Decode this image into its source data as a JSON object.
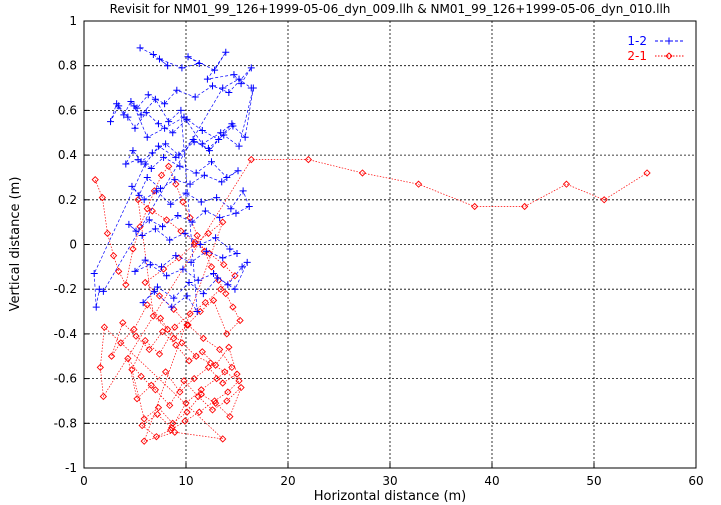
{
  "chart_data": {
    "type": "scatter",
    "title": "Revisit for NM01_99_126+1999-05-06_dyn_009.llh & NM01_99_126+1999-05-06_dyn_010.llh",
    "xlabel": "Horizontal distance (m)",
    "ylabel": "Vertical distance (m)",
    "xlim": [
      0,
      60
    ],
    "ylim": [
      -1,
      1
    ],
    "xticks": [
      0,
      10,
      20,
      30,
      40,
      50,
      60
    ],
    "yticks": [
      -1,
      -0.8,
      -0.6,
      -0.4,
      -0.2,
      0,
      0.2,
      0.4,
      0.6,
      0.8,
      1
    ],
    "grid": true,
    "legend_position": "top-right",
    "series": [
      {
        "name": "1-2",
        "color": "#0000ff",
        "marker": "plus",
        "line": "dashed",
        "summary": "dense cluster of points, horizontal distance about 1 to 17 m, vertical distance about -0.3 to 0.9 m",
        "x": [
          5.5,
          6.8,
          8.2,
          7.4,
          9.6,
          11.3,
          10.2,
          12.8,
          13.9,
          12.1,
          14.7,
          15.4,
          16.4,
          14.2,
          12.6,
          10.9,
          9.1,
          7.9,
          6.3,
          5.2,
          4.6,
          3.9,
          3.2,
          2.6,
          3.4,
          4.3,
          5.0,
          6.1,
          7.3,
          8.7,
          10.1,
          11.6,
          13.2,
          14.6,
          15.8,
          16.6,
          15.2,
          13.7,
          12.2,
          10.8,
          9.3,
          8.0,
          6.7,
          5.6,
          4.8,
          4.1,
          5.3,
          6.6,
          7.8,
          9.4,
          11.0,
          12.5,
          14.0,
          15.1,
          13.5,
          11.8,
          10.4,
          8.9,
          7.5,
          6.2,
          5.4,
          4.7,
          5.9,
          7.1,
          8.5,
          10.0,
          11.5,
          13.0,
          14.4,
          15.6,
          16.2,
          14.9,
          13.3,
          11.9,
          10.6,
          9.2,
          7.7,
          6.4,
          5.1,
          4.4,
          5.7,
          7.0,
          8.4,
          9.9,
          11.4,
          12.9,
          14.3,
          15.0,
          13.6,
          12.0,
          10.5,
          9.0,
          7.6,
          6.0,
          5.0,
          6.5,
          8.1,
          9.7,
          11.2,
          12.7,
          14.1,
          15.5,
          16.0,
          14.8,
          13.1,
          11.7,
          10.3,
          8.8,
          7.2,
          5.8,
          6.9,
          8.6,
          10.1,
          11.1,
          9.5,
          8.3,
          7.0,
          5.6,
          4.9,
          6.2,
          7.9,
          9.8,
          11.6,
          13.4,
          14.5,
          12.3,
          10.7,
          9.0,
          7.3,
          6.0,
          1.0,
          1.2,
          1.5,
          1.9,
          13.6,
          15.2,
          16.4
        ],
        "y": [
          0.88,
          0.85,
          0.8,
          0.83,
          0.79,
          0.81,
          0.84,
          0.78,
          0.86,
          0.74,
          0.76,
          0.72,
          0.79,
          0.68,
          0.71,
          0.66,
          0.69,
          0.63,
          0.67,
          0.61,
          0.64,
          0.58,
          0.63,
          0.55,
          0.62,
          0.57,
          0.52,
          0.59,
          0.54,
          0.5,
          0.56,
          0.51,
          0.47,
          0.53,
          0.48,
          0.7,
          0.44,
          0.49,
          0.43,
          0.46,
          0.4,
          0.45,
          0.41,
          0.37,
          0.42,
          0.36,
          0.38,
          0.34,
          0.39,
          0.35,
          0.32,
          0.37,
          0.3,
          0.33,
          0.28,
          0.31,
          0.27,
          0.29,
          0.25,
          0.3,
          0.22,
          0.26,
          0.2,
          0.24,
          0.18,
          0.23,
          0.19,
          0.21,
          0.16,
          0.24,
          0.17,
          0.14,
          0.12,
          0.15,
          0.1,
          0.13,
          0.08,
          0.11,
          0.06,
          0.09,
          0.04,
          0.07,
          0.02,
          0.05,
          0.0,
          0.03,
          -0.02,
          -0.04,
          -0.06,
          -0.03,
          -0.08,
          -0.05,
          -0.1,
          -0.07,
          -0.12,
          -0.09,
          -0.14,
          -0.11,
          -0.16,
          -0.13,
          -0.18,
          -0.1,
          -0.08,
          -0.2,
          -0.15,
          -0.22,
          -0.17,
          -0.24,
          -0.19,
          -0.26,
          -0.21,
          -0.28,
          -0.23,
          -0.3,
          0.6,
          0.55,
          0.65,
          0.58,
          0.62,
          0.48,
          0.52,
          0.57,
          0.45,
          0.5,
          0.54,
          0.42,
          0.47,
          0.39,
          0.44,
          0.36,
          -0.13,
          -0.28,
          -0.2,
          -0.21,
          0.7,
          0.74,
          0.7
        ],
        "label_style": "legend"
      },
      {
        "name": "2-1",
        "color": "#ff0000",
        "marker": "diamond",
        "line": "dotted",
        "summary": "dense cluster at horizontal distance about 1 to 16 m, vertical about -0.9 to 0.4 m, plus a trail of points at 15 to 56 m near 0.2 to 0.4 m",
        "x": [
          1.1,
          1.8,
          2.3,
          2.9,
          3.4,
          4.1,
          4.8,
          5.5,
          6.2,
          6.9,
          7.6,
          8.3,
          9.0,
          9.7,
          10.4,
          11.1,
          11.8,
          12.5,
          13.2,
          13.9,
          14.6,
          15.3,
          14.0,
          12.7,
          11.4,
          10.1,
          8.8,
          7.5,
          6.2,
          4.9,
          3.6,
          2.7,
          3.8,
          5.1,
          6.4,
          7.7,
          9.0,
          10.3,
          11.6,
          12.9,
          14.2,
          15.0,
          13.6,
          12.2,
          10.8,
          9.4,
          8.0,
          6.6,
          5.2,
          4.3,
          5.6,
          7.0,
          8.4,
          9.8,
          11.2,
          12.6,
          14.0,
          15.4,
          14.3,
          12.9,
          11.5,
          10.1,
          8.7,
          7.3,
          5.9,
          4.7,
          6.0,
          7.4,
          8.9,
          10.4,
          11.9,
          13.4,
          14.8,
          13.7,
          12.3,
          10.9,
          9.5,
          8.1,
          6.7,
          5.3,
          6.8,
          8.2,
          9.6,
          11.0,
          12.4,
          13.8,
          15.2,
          14.1,
          12.8,
          11.3,
          9.9,
          8.5,
          7.1,
          5.7,
          7.2,
          8.6,
          10.0,
          11.5,
          13.0,
          14.5,
          13.3,
          11.7,
          10.2,
          8.8,
          7.4,
          6.0,
          7.8,
          9.3,
          10.8,
          12.2,
          13.6,
          5.9,
          8.9,
          13.6,
          2.0,
          1.6,
          1.9,
          16.4,
          22.0,
          27.3,
          32.8,
          38.3,
          43.2,
          47.3,
          51.0,
          55.2
        ],
        "y": [
          0.29,
          0.21,
          0.05,
          -0.05,
          -0.12,
          -0.18,
          -0.02,
          0.08,
          0.16,
          0.24,
          0.31,
          0.35,
          0.27,
          0.19,
          0.12,
          0.04,
          -0.03,
          -0.1,
          -0.16,
          -0.22,
          -0.28,
          -0.34,
          -0.4,
          -0.25,
          -0.3,
          -0.36,
          -0.42,
          -0.33,
          -0.27,
          -0.38,
          -0.44,
          -0.5,
          -0.35,
          -0.41,
          -0.47,
          -0.39,
          -0.45,
          -0.52,
          -0.48,
          -0.54,
          -0.46,
          -0.58,
          -0.62,
          -0.55,
          -0.6,
          -0.66,
          -0.57,
          -0.63,
          -0.69,
          -0.51,
          -0.59,
          -0.65,
          -0.72,
          -0.61,
          -0.68,
          -0.74,
          -0.7,
          -0.64,
          -0.77,
          -0.71,
          -0.67,
          -0.75,
          -0.8,
          -0.73,
          -0.78,
          -0.56,
          -0.43,
          -0.49,
          -0.37,
          -0.31,
          -0.26,
          -0.2,
          -0.14,
          -0.09,
          -0.04,
          0.01,
          0.06,
          0.11,
          0.15,
          0.2,
          -0.32,
          -0.38,
          -0.44,
          -0.5,
          -0.53,
          -0.57,
          -0.61,
          -0.66,
          -0.7,
          -0.75,
          -0.79,
          -0.83,
          -0.86,
          -0.81,
          -0.76,
          -0.82,
          -0.71,
          -0.65,
          -0.6,
          -0.55,
          -0.47,
          -0.42,
          -0.36,
          -0.29,
          -0.23,
          -0.17,
          -0.11,
          -0.06,
          0.0,
          0.05,
          0.1,
          -0.88,
          -0.84,
          -0.87,
          -0.37,
          -0.55,
          -0.68,
          0.38,
          0.38,
          0.32,
          0.27,
          0.17,
          0.17,
          0.27,
          0.2,
          0.32
        ],
        "label_style": "legend"
      }
    ]
  }
}
